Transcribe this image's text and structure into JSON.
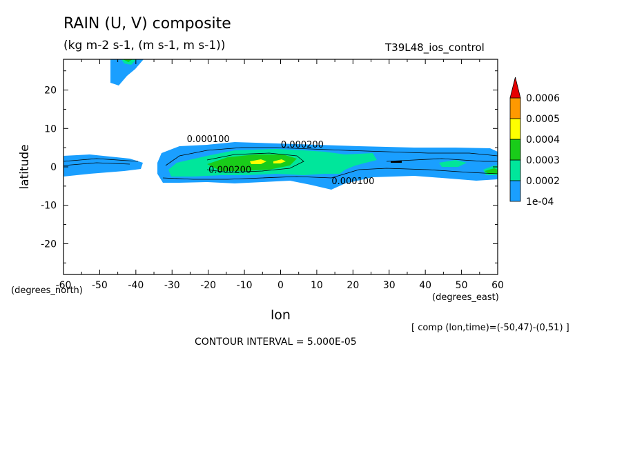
{
  "header": {
    "title": "RAIN (U, V) composite",
    "subtitle": "(kg m-2 s-1, (m s-1, m s-1))",
    "run_id": "T39L48_ios_control"
  },
  "footer": {
    "comp_note": "[ comp (lon,time)=(-50,47)-(0,51) ]",
    "contour_interval": "CONTOUR INTERVAL = 5.000E-05"
  },
  "chart_data": {
    "type": "heatmap",
    "title": "RAIN (U, V) composite",
    "subtitle": "(kg m-2 s-1, (m s-1, m s-1))",
    "xlabel": "lon",
    "ylabel": "latitude",
    "x_unit_label": "(degrees_east)",
    "y_unit_label": "(degrees_north)",
    "xlim": [
      -60,
      60
    ],
    "ylim": [
      -28,
      28
    ],
    "xticks": [
      -60,
      -50,
      -40,
      -30,
      -20,
      -10,
      0,
      10,
      20,
      30,
      40,
      50,
      60
    ],
    "yticks": [
      -20,
      -10,
      0,
      10,
      20
    ],
    "contour_labels": [
      {
        "text": "0.000100",
        "lon": -20,
        "lat": 6.5
      },
      {
        "text": "0.000200",
        "lon": 6,
        "lat": 5
      },
      {
        "text": "0.000200",
        "lon": -14,
        "lat": -1.5
      },
      {
        "text": "0.000100",
        "lon": 20,
        "lat": -4.5
      }
    ],
    "colorbar": {
      "levels": [
        "1e-04",
        "0.0002",
        "0.0003",
        "0.0004",
        "0.0005",
        "0.0006"
      ],
      "colors": [
        "#1a9fff",
        "#00e69b",
        "#19cc19",
        "#ffff00",
        "#ff9900",
        "#e60000"
      ]
    },
    "colors": {
      "level_1e-04": "#1a9fff",
      "level_0.0002": "#00e69b",
      "level_0.0003": "#19cc19",
      "level_0.0004": "#ffff00",
      "level_0.0005": "#ff9900",
      "level_0.0006": "#e60000"
    }
  }
}
